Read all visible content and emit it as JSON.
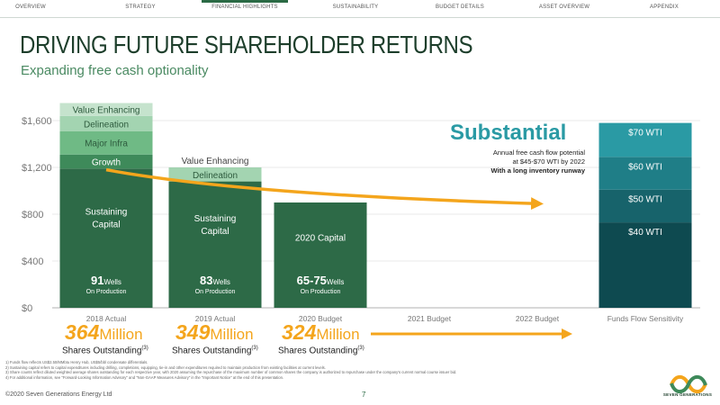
{
  "nav": {
    "items": [
      "OVERVIEW",
      "STRATEGY",
      "FINANCIAL HIGHLIGHTS",
      "SUSTAINABILITY",
      "BUDGET DETAILS",
      "ASSET OVERVIEW",
      "APPENDIX"
    ],
    "active": "FINANCIAL HIGHLIGHTS"
  },
  "title": "DRIVING FUTURE SHAREHOLDER RETURNS",
  "subtitle": "Expanding free cash optionality",
  "colors": {
    "sustaining": "#2d6a47",
    "growth": "#3e8a5a",
    "major_infra": "#6fba85",
    "delineation": "#a3d4b1",
    "value_enhancing": "#c5e3cd",
    "wti40": "#0e4a50",
    "wti50": "#17636b",
    "wti60": "#1f7e87",
    "wti70": "#2a9aa4",
    "arrow": "#f4a51c"
  },
  "chart_data": {
    "type": "bar",
    "stacked": true,
    "categories": [
      "2018 Actual",
      "2019 Actual",
      "2020 Budget",
      "2021 Budget",
      "2022 Budget",
      "Funds Flow Sensitivity"
    ],
    "ylim": [
      0,
      1600
    ],
    "yticks": [
      "$0",
      "$400",
      "$800",
      "$1,200",
      "$1,600"
    ],
    "ytick_values": [
      0,
      400,
      800,
      1200,
      1600
    ],
    "grid": true,
    "capex_bars": [
      {
        "category": "2018 Actual",
        "segments": [
          {
            "name": "Sustaining Capital",
            "label": "Sustaining Capital",
            "value": 1190,
            "color_key": "sustaining"
          },
          {
            "name": "Growth",
            "label": "Growth",
            "value": 120,
            "color_key": "growth"
          },
          {
            "name": "Major Infra",
            "label": "Major Infra",
            "value": 200,
            "color_key": "major_infra"
          },
          {
            "name": "Delineation",
            "label": "Delineation",
            "value": 130,
            "color_key": "delineation"
          },
          {
            "name": "Value Enhancing",
            "label": "Value Enhancing",
            "value": 110,
            "color_key": "value_enhancing"
          }
        ],
        "wells_num": "91",
        "wells_unit": "Wells",
        "wells_sub": "On Production"
      },
      {
        "category": "2019 Actual",
        "segments": [
          {
            "name": "Sustaining Capital",
            "label": "Sustaining Capital",
            "value": 1080,
            "color_key": "sustaining"
          },
          {
            "name": "Delineation",
            "label": "Delineation",
            "value": 120,
            "color_key": "delineation"
          }
        ],
        "top_label": "Value Enhancing",
        "wells_num": "83",
        "wells_unit": "Wells",
        "wells_sub": "On Production"
      },
      {
        "category": "2020 Budget",
        "segments": [
          {
            "name": "2020 Capital",
            "label": "2020 Capital",
            "value": 900,
            "color_key": "sustaining"
          }
        ],
        "wells_num": "65-75",
        "wells_unit": "Wells",
        "wells_sub": "On Production"
      }
    ],
    "sensitivity_bar": {
      "category": "Funds Flow Sensitivity",
      "segments": [
        {
          "label": "$40 WTI",
          "value": 730,
          "color_key": "wti40"
        },
        {
          "label": "$50 WTI",
          "value": 280,
          "color_key": "wti50"
        },
        {
          "label": "$60 WTI",
          "value": 280,
          "color_key": "wti60"
        },
        {
          "label": "$70 WTI",
          "value": 290,
          "color_key": "wti70"
        }
      ]
    },
    "trend_arrow": {
      "from": [
        "2018 Actual",
        1180
      ],
      "to": [
        "2022 Budget",
        890
      ]
    }
  },
  "annotation": {
    "headline": "Substantial",
    "line1": "Annual free cash flow potential",
    "line2": "at $45-$70 WTI by 2022",
    "line3": "With a long inventory runway"
  },
  "shares": [
    {
      "num": "364",
      "unit": "Million",
      "label": "Shares Outstanding",
      "note": "(3)"
    },
    {
      "num": "349",
      "unit": "Million",
      "label": "Shares Outstanding",
      "note": "(3)"
    },
    {
      "num": "324",
      "unit": "Million",
      "label": "Shares Outstanding",
      "note": "(3)"
    }
  ],
  "footnotes": [
    "1)    Funds flow reflects US$2.50/MMbtu Henry Hub, US$5/bbl condensate differentials.",
    "2)    Sustaining capital refers to capital expenditures including drilling, completions, equipping, tie-in and other expenditures required to maintain production from existing facilities at current levels.",
    "3)    Share counts reflect diluted weighted average shares outstanding for each respective year, with 2020 assuming the repurchase of the maximum number of common shares the company is authorized to repurchase under the company's current normal course issuer bid.",
    "4)    For additional information, see \"Forward-Looking Information Advisory\" and \"Non-GAAP Measures Advisory\" in the \"Important Notice\" at the end of this presentation."
  ],
  "footer": {
    "copyright": "©2020 Seven Generations Energy Ltd",
    "page": "7",
    "logo_text": "SEVEN GENERATIONS"
  }
}
